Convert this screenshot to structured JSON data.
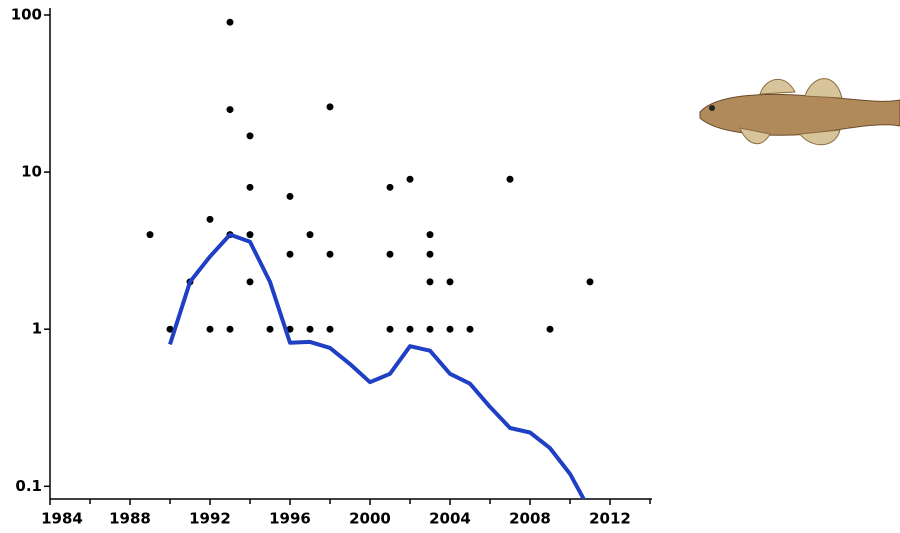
{
  "chart_data": {
    "type": "scatter-line",
    "log_y": true,
    "xlim": [
      1984,
      2014
    ],
    "xticks": [
      1984,
      1988,
      1992,
      1996,
      2000,
      2004,
      2008,
      2012
    ],
    "xminorticks": [
      1986,
      1990,
      1994,
      1998,
      2002,
      2006,
      2010,
      2014
    ],
    "ylim": [
      0.083,
      100
    ],
    "yticks": [
      100,
      10,
      1,
      0.1
    ],
    "series": [
      {
        "type": "scatter",
        "color": "#000000",
        "x": [
          1989,
          1990,
          1991,
          1992,
          1992,
          1993,
          1993,
          1993,
          1993,
          1994,
          1994,
          1994,
          1994,
          1995,
          1996,
          1996,
          1996,
          1997,
          1997,
          1998,
          1998,
          1998,
          2001,
          2001,
          2001,
          2002,
          2002,
          2003,
          2003,
          2003,
          2003,
          2004,
          2004,
          2005,
          2007,
          2009,
          2011
        ],
        "values": [
          4,
          1,
          2,
          5,
          1,
          90,
          25,
          4,
          1,
          17,
          8,
          4,
          2,
          1,
          7,
          3,
          1,
          4,
          1,
          26,
          3,
          1,
          8,
          3,
          1,
          9,
          1,
          4,
          3,
          2,
          1,
          2,
          1,
          1,
          9,
          1,
          2
        ]
      },
      {
        "type": "line",
        "color": "#1f3fc4",
        "x": [
          1990,
          1991,
          1992,
          1993,
          1994,
          1995,
          1996,
          1997,
          1998,
          1999,
          2000,
          2001,
          2002,
          2003,
          2004,
          2005,
          2006,
          2007,
          2008,
          2009,
          2010,
          2011
        ],
        "values": [
          0.8,
          2.0,
          2.9,
          4.0,
          3.6,
          2.0,
          0.82,
          0.83,
          0.76,
          0.6,
          0.46,
          0.52,
          0.78,
          0.73,
          0.52,
          0.45,
          0.32,
          0.235,
          0.22,
          0.175,
          0.12,
          0.07
        ]
      }
    ]
  }
}
